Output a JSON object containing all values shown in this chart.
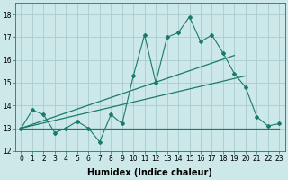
{
  "xlabel": "Humidex (Indice chaleur)",
  "background_color": "#cce8e8",
  "grid_color": "#aacccc",
  "line_color": "#1a7a6e",
  "xlim": [
    -0.5,
    23.5
  ],
  "ylim": [
    12,
    18.5
  ],
  "yticks": [
    12,
    13,
    14,
    15,
    16,
    17,
    18
  ],
  "xticks": [
    0,
    1,
    2,
    3,
    4,
    5,
    6,
    7,
    8,
    9,
    10,
    11,
    12,
    13,
    14,
    15,
    16,
    17,
    18,
    19,
    20,
    21,
    22,
    23
  ],
  "main_series_x": [
    0,
    1,
    2,
    3,
    4,
    5,
    6,
    7,
    8,
    9,
    10,
    11,
    12,
    13,
    14,
    15,
    16,
    17,
    18,
    19,
    20,
    21,
    22,
    23
  ],
  "main_series_y": [
    13.0,
    13.8,
    13.6,
    12.8,
    13.0,
    13.3,
    13.0,
    12.4,
    13.6,
    13.2,
    15.3,
    17.1,
    15.0,
    17.0,
    17.2,
    17.9,
    16.8,
    17.1,
    16.3,
    15.4,
    14.8,
    13.5,
    13.1,
    13.2
  ],
  "upper_line_x": [
    0,
    19
  ],
  "upper_line_y": [
    13.0,
    16.2
  ],
  "lower_line_x": [
    0,
    20
  ],
  "lower_line_y": [
    13.0,
    15.3
  ],
  "min_line_x": [
    0,
    23
  ],
  "min_line_y": [
    13.0,
    13.0
  ],
  "xlabel_fontsize": 7,
  "tick_fontsize": 5.5
}
